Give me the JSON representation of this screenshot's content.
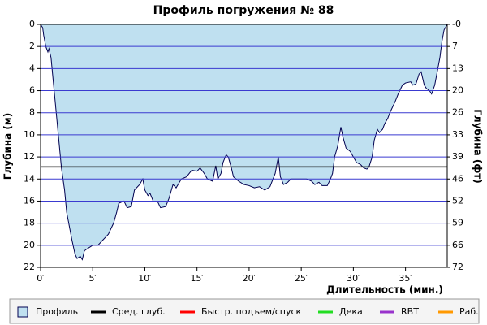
{
  "chart_data": {
    "type": "area",
    "title": "Профиль погружения № 88",
    "x_label": "Длительность (мин.)",
    "y_label": "Глубина (м)",
    "y2_label": "Глубина (фт)",
    "xlim": [
      0,
      39
    ],
    "xticks": [
      {
        "value": 0,
        "label": "0′"
      },
      {
        "value": 5,
        "label": "5′"
      },
      {
        "value": 10,
        "label": "10′"
      },
      {
        "value": 15,
        "label": "15′"
      },
      {
        "value": 20,
        "label": "20′"
      },
      {
        "value": 25,
        "label": "25′"
      },
      {
        "value": 30,
        "label": "30′"
      },
      {
        "value": 35,
        "label": "35′"
      }
    ],
    "ylim": [
      0,
      22
    ],
    "y_inverted": true,
    "yticks": [
      0,
      2,
      4,
      6,
      8,
      10,
      12,
      14,
      16,
      18,
      20,
      22
    ],
    "y2lim": [
      0,
      72.18
    ],
    "y2ticks": [
      {
        "value": 0,
        "label": "-0"
      },
      {
        "value": 6.56,
        "label": "7"
      },
      {
        "value": 13.12,
        "label": "13"
      },
      {
        "value": 19.69,
        "label": "20"
      },
      {
        "value": 26.25,
        "label": "26"
      },
      {
        "value": 32.81,
        "label": "33"
      },
      {
        "value": 39.37,
        "label": "39"
      },
      {
        "value": 45.93,
        "label": "46"
      },
      {
        "value": 52.49,
        "label": "52"
      },
      {
        "value": 59.06,
        "label": "59"
      },
      {
        "value": 65.62,
        "label": "66"
      },
      {
        "value": 72.18,
        "label": "72"
      }
    ],
    "grid": true,
    "grid_color": "#3a3ad0",
    "series": [
      {
        "name": "Профиль",
        "color": "#bfe0f0",
        "line_color": "#000050",
        "x": [
          0,
          0.2,
          0.3,
          0.5,
          0.7,
          0.8,
          1.0,
          1.2,
          1.5,
          1.8,
          2.0,
          2.3,
          2.5,
          2.8,
          3.0,
          3.3,
          3.5,
          3.8,
          4.0,
          4.2,
          4.5,
          5.0,
          5.5,
          6.0,
          6.5,
          7.0,
          7.3,
          7.5,
          8.0,
          8.3,
          8.7,
          9.0,
          9.5,
          9.8,
          10.0,
          10.3,
          10.5,
          10.8,
          11.2,
          11.5,
          12.0,
          12.3,
          12.7,
          13.0,
          13.5,
          14.0,
          14.5,
          15.0,
          15.3,
          15.7,
          16.0,
          16.5,
          16.8,
          17.0,
          17.3,
          17.5,
          17.8,
          18.0,
          18.3,
          18.5,
          19.0,
          19.5,
          20.0,
          20.5,
          21.0,
          21.5,
          22.0,
          22.5,
          22.8,
          23.0,
          23.3,
          23.7,
          24.0,
          25.0,
          25.5,
          26.0,
          26.3,
          26.7,
          27.0,
          27.5,
          27.8,
          28.0,
          28.2,
          28.5,
          28.8,
          29.0,
          29.3,
          29.7,
          30.0,
          30.3,
          30.7,
          31.0,
          31.3,
          31.5,
          31.8,
          32.0,
          32.3,
          32.5,
          32.8,
          33.0,
          33.3,
          33.5,
          34.0,
          34.3,
          34.7,
          35.0,
          35.5,
          35.7,
          36.0,
          36.3,
          36.5,
          36.8,
          37.0,
          37.3,
          37.5,
          37.8,
          38.0,
          38.3,
          38.5,
          38.7,
          39.0
        ],
        "values": [
          0,
          0.3,
          1,
          2,
          2.5,
          2.2,
          3,
          5,
          8,
          11,
          13,
          15,
          17,
          18.5,
          19.5,
          20.8,
          21.2,
          21,
          21.3,
          20.5,
          20.3,
          20,
          20,
          19.5,
          19,
          18,
          17,
          16.2,
          16,
          16.6,
          16.5,
          15,
          14.5,
          14,
          15,
          15.5,
          15.3,
          16,
          16,
          16.6,
          16.5,
          15.8,
          14.5,
          14.8,
          14,
          13.8,
          13.2,
          13.3,
          13,
          13.5,
          14,
          14.2,
          12.8,
          14,
          13.5,
          12.5,
          11.8,
          12,
          13,
          13.8,
          14.2,
          14.5,
          14.6,
          14.8,
          14.7,
          15,
          14.7,
          13.5,
          12,
          13.8,
          14.5,
          14.3,
          14,
          14,
          14,
          14.2,
          14.5,
          14.3,
          14.6,
          14.6,
          14,
          13.5,
          12,
          11,
          9.3,
          10.2,
          11.2,
          11.5,
          12,
          12.5,
          12.7,
          13,
          13.1,
          12.9,
          12,
          10.5,
          9.5,
          9.8,
          9.5,
          9,
          8.5,
          8,
          7,
          6.3,
          5.5,
          5.3,
          5.2,
          5.5,
          5.4,
          4.5,
          4.3,
          5.5,
          5.8,
          6,
          6.3,
          5.5,
          4.5,
          3,
          1.5,
          0.5,
          0
        ]
      }
    ],
    "average_depth": {
      "name": "Сред. глуб.",
      "color": "#000000",
      "value": 12.9
    },
    "legend": [
      {
        "name": "Быстр. подъем/спуск",
        "color": "#ff0000"
      },
      {
        "name": "Дека",
        "color": "#22dd22"
      },
      {
        "name": "RBT",
        "color": "#9933cc"
      },
      {
        "name": "Раб.",
        "color": "#ff9900"
      }
    ]
  }
}
